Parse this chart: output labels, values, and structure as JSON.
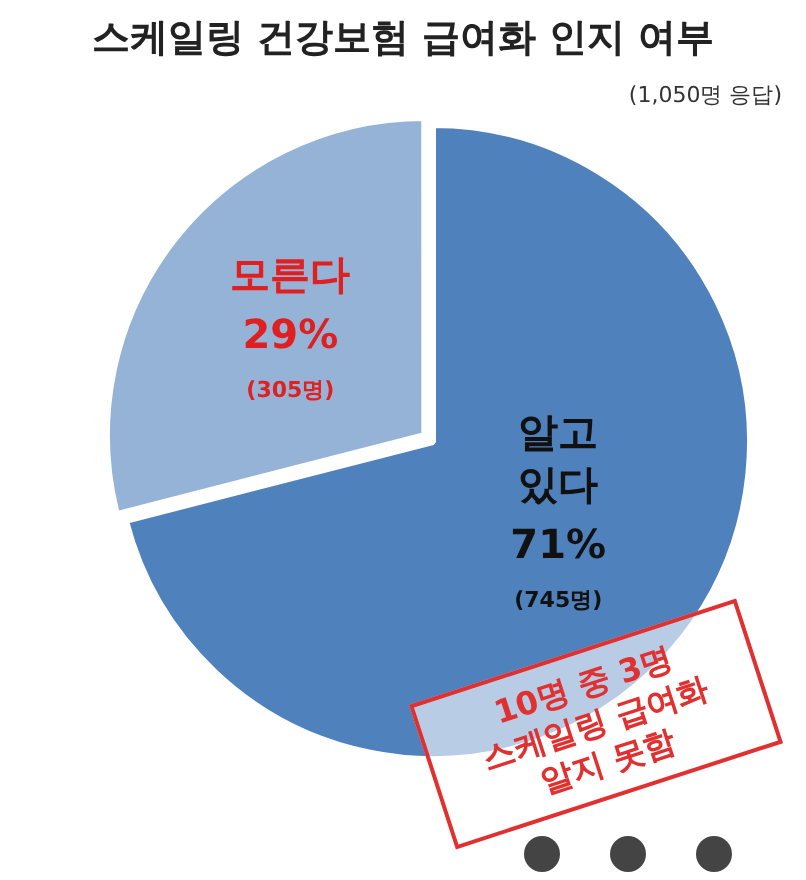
{
  "chart_data": {
    "type": "pie",
    "title": "스케일링 건강보험 급여화 인지 여부",
    "subtitle": "(1,050명 응답)",
    "categories": [
      "알고 있다",
      "모른다"
    ],
    "values": [
      71,
      29
    ],
    "value_labels": [
      "71%",
      "29%"
    ],
    "colors": [
      "#4f81bd",
      "#95b3d7"
    ],
    "annotations": [
      "(745명)",
      "(305명)",
      "10명 중 3명\n스케일링 급여화\n알지 못함"
    ],
    "legend": false
  }
}
